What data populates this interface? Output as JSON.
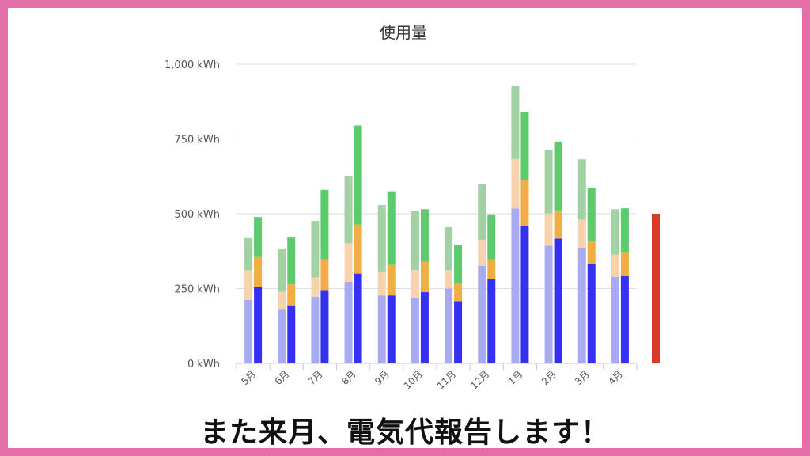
{
  "chart_data": {
    "type": "bar",
    "title": "使用量",
    "categories": [
      "5月",
      "6月",
      "7月",
      "8月",
      "9月",
      "10月",
      "11月",
      "12月",
      "1月",
      "2月",
      "3月",
      "4月"
    ],
    "ylim": [
      0,
      1000
    ],
    "yticks": [
      "0 kWh",
      "250 kWh",
      "500 kWh",
      "750 kWh",
      "1,000 kWh"
    ],
    "grid": true,
    "stacked": true,
    "groups": [
      {
        "segments": [
          {
            "values": [
              212,
              182,
              222,
              273,
              227,
              217,
              250,
              326,
              518,
              393,
              387,
              289
            ],
            "color": "#a9abf2"
          },
          {
            "values": [
              99,
              57,
              65,
              129,
              80,
              95,
              62,
              87,
              165,
              108,
              93,
              74
            ],
            "color": "#f7d2ac"
          },
          {
            "values": [
              110,
              145,
              189,
              225,
              222,
              198,
              143,
              186,
              245,
              213,
              202,
              152
            ],
            "color": "#a2d1a4"
          }
        ]
      },
      {
        "segments": [
          {
            "values": [
              255,
              194,
              245,
              300,
              227,
              238,
              208,
              282,
              460,
              417,
              333,
              293
            ],
            "color": "#3431f2"
          },
          {
            "values": [
              103,
              70,
              102,
              164,
              102,
              102,
              59,
              65,
              152,
              94,
              75,
              79
            ],
            "color": "#f2ad45"
          },
          {
            "values": [
              131,
              159,
              233,
              331,
              246,
              175,
              127,
              151,
              227,
              230,
              179,
              146
            ],
            "color": "#5dcb6d"
          }
        ]
      }
    ],
    "marker": {
      "value": 500,
      "color": "#db3a2b"
    }
  },
  "caption": "また来月、電気代報告します！"
}
